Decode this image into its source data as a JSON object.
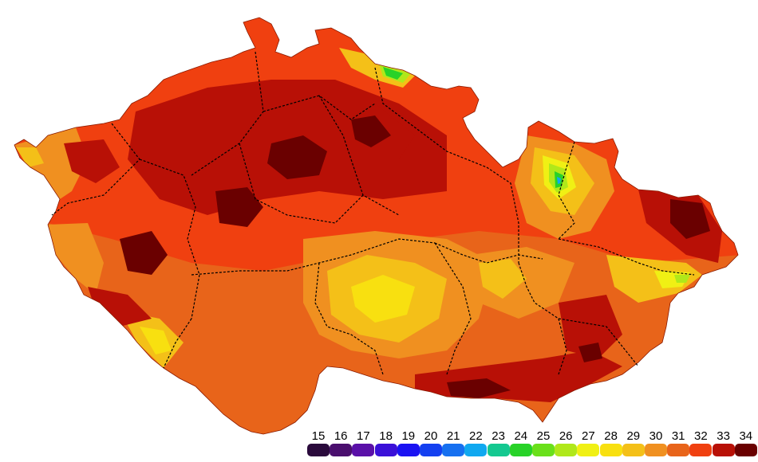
{
  "legend": {
    "items": [
      {
        "value": "15",
        "color": "#2a0a3c"
      },
      {
        "value": "16",
        "color": "#4a0f6e"
      },
      {
        "value": "17",
        "color": "#5a10a8"
      },
      {
        "value": "18",
        "color": "#3a10d8"
      },
      {
        "value": "19",
        "color": "#1a12f2"
      },
      {
        "value": "20",
        "color": "#1440f0"
      },
      {
        "value": "21",
        "color": "#1670f0"
      },
      {
        "value": "22",
        "color": "#10a8f0"
      },
      {
        "value": "23",
        "color": "#14c890"
      },
      {
        "value": "24",
        "color": "#28d228"
      },
      {
        "value": "25",
        "color": "#6ae01a"
      },
      {
        "value": "26",
        "color": "#b0e81a"
      },
      {
        "value": "27",
        "color": "#f0f014"
      },
      {
        "value": "28",
        "color": "#f8e010"
      },
      {
        "value": "29",
        "color": "#f4c018"
      },
      {
        "value": "30",
        "color": "#f09020"
      },
      {
        "value": "31",
        "color": "#e8641a"
      },
      {
        "value": "32",
        "color": "#f04010"
      },
      {
        "value": "33",
        "color": "#b81006"
      },
      {
        "value": "34",
        "color": "#6a0000"
      }
    ]
  },
  "map_colors": {
    "base": "#f04010",
    "band30": "#f09020",
    "band31": "#e8641a",
    "band33": "#b81006",
    "band34": "#6a0000",
    "band29": "#f4c018",
    "band28": "#f8e010",
    "band27": "#f0f014",
    "band26": "#b0e81a",
    "band24": "#28d228",
    "band22": "#10a8f0"
  }
}
